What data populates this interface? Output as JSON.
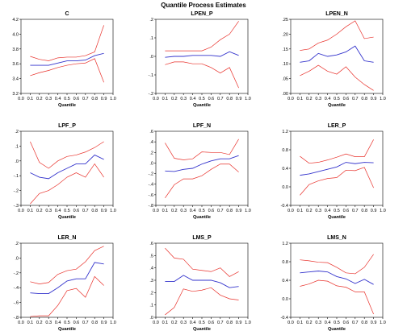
{
  "title": "Quantile Process Estimates",
  "colors": {
    "estimate": "#3333cc",
    "bounds": "#e8302a",
    "axis": "#000000"
  },
  "chart_data": [
    {
      "type": "line",
      "title": "C",
      "xlabel": "Quantile",
      "xlim": [
        0.0,
        1.0
      ],
      "xticks": [
        "0.0",
        "0.1",
        "0.2",
        "0.3",
        "0.4",
        "0.5",
        "0.6",
        "0.7",
        "0.8",
        "0.9",
        "1.0"
      ],
      "ylim": [
        3.2,
        4.2
      ],
      "yticks": [
        3.2,
        3.4,
        3.6,
        3.8,
        4.0,
        4.2
      ],
      "ytick_labels": [
        "3.2",
        "3.4",
        "3.6",
        "3.8",
        "4.0",
        "4.2"
      ],
      "x": [
        0.1,
        0.2,
        0.3,
        0.4,
        0.5,
        0.6,
        0.7,
        0.8,
        0.9
      ],
      "series": [
        {
          "role": "estimate",
          "values": [
            3.58,
            3.58,
            3.58,
            3.61,
            3.64,
            3.64,
            3.65,
            3.71,
            3.74
          ]
        },
        {
          "role": "upper",
          "values": [
            3.7,
            3.66,
            3.64,
            3.68,
            3.69,
            3.69,
            3.71,
            3.76,
            4.12
          ]
        },
        {
          "role": "lower",
          "values": [
            3.44,
            3.48,
            3.51,
            3.55,
            3.58,
            3.6,
            3.61,
            3.67,
            3.35
          ]
        }
      ]
    },
    {
      "type": "line",
      "title": "LPEN_P",
      "xlabel": "Quantile",
      "xlim": [
        0.0,
        1.0
      ],
      "xticks": [
        "0.0",
        "0.1",
        "0.2",
        "0.3",
        "0.4",
        "0.5",
        "0.6",
        "0.7",
        "0.8",
        "0.9",
        "1.0"
      ],
      "ylim": [
        -0.2,
        0.2
      ],
      "yticks": [
        -0.2,
        -0.1,
        0.0,
        0.1,
        0.2
      ],
      "ytick_labels": [
        "-.2",
        "-.1",
        ".0",
        ".1",
        ".2"
      ],
      "x": [
        0.1,
        0.2,
        0.3,
        0.4,
        0.5,
        0.6,
        0.7,
        0.8,
        0.9
      ],
      "series": [
        {
          "role": "estimate",
          "values": [
            -0.005,
            0.0,
            0.0,
            0.005,
            0.005,
            0.005,
            0.0,
            0.025,
            0.005
          ]
        },
        {
          "role": "upper",
          "values": [
            0.03,
            0.03,
            0.03,
            0.03,
            0.03,
            0.05,
            0.09,
            0.12,
            0.19
          ]
        },
        {
          "role": "lower",
          "values": [
            -0.045,
            -0.03,
            -0.03,
            -0.04,
            -0.04,
            -0.06,
            -0.09,
            -0.06,
            -0.17
          ]
        }
      ]
    },
    {
      "type": "line",
      "title": "LPEN_N",
      "xlabel": "Quantile",
      "xlim": [
        0.0,
        1.0
      ],
      "xticks": [
        "0.0",
        "0.1",
        "0.2",
        "0.3",
        "0.4",
        "0.5",
        "0.6",
        "0.7",
        "0.8",
        "0.9",
        "1.0"
      ],
      "ylim": [
        0.0,
        0.25
      ],
      "yticks": [
        0.0,
        0.05,
        0.1,
        0.15,
        0.2,
        0.25
      ],
      "ytick_labels": [
        ".00",
        ".05",
        ".10",
        ".15",
        ".20",
        ".25"
      ],
      "x": [
        0.1,
        0.2,
        0.3,
        0.4,
        0.5,
        0.6,
        0.7,
        0.8,
        0.9
      ],
      "series": [
        {
          "role": "estimate",
          "values": [
            0.105,
            0.11,
            0.135,
            0.125,
            0.13,
            0.14,
            0.16,
            0.11,
            0.105
          ]
        },
        {
          "role": "upper",
          "values": [
            0.145,
            0.15,
            0.17,
            0.18,
            0.2,
            0.225,
            0.245,
            0.185,
            0.19
          ]
        },
        {
          "role": "lower",
          "values": [
            0.06,
            0.075,
            0.095,
            0.075,
            0.065,
            0.09,
            0.055,
            0.03,
            0.01
          ]
        }
      ]
    },
    {
      "type": "line",
      "title": "LPF_P",
      "xlabel": "Quantile",
      "xlim": [
        0.0,
        1.0
      ],
      "xticks": [
        "0.0",
        "0.1",
        "0.2",
        "0.3",
        "0.4",
        "0.5",
        "0.6",
        "0.7",
        "0.8",
        "0.9",
        "1.0"
      ],
      "ylim": [
        -0.3,
        0.2
      ],
      "yticks": [
        -0.3,
        -0.2,
        -0.1,
        0.0,
        0.1,
        0.2
      ],
      "ytick_labels": [
        "-.3",
        "-.2",
        "-.1",
        ".0",
        ".1",
        ".2"
      ],
      "x": [
        0.1,
        0.2,
        0.3,
        0.4,
        0.5,
        0.6,
        0.7,
        0.8,
        0.9
      ],
      "series": [
        {
          "role": "estimate",
          "values": [
            -0.08,
            -0.11,
            -0.12,
            -0.08,
            -0.05,
            -0.02,
            -0.02,
            0.04,
            0.01
          ]
        },
        {
          "role": "upper",
          "values": [
            0.13,
            -0.01,
            -0.05,
            0.0,
            0.03,
            0.04,
            0.06,
            0.09,
            0.13
          ]
        },
        {
          "role": "lower",
          "values": [
            -0.29,
            -0.22,
            -0.2,
            -0.16,
            -0.11,
            -0.08,
            -0.11,
            -0.02,
            -0.11
          ]
        }
      ]
    },
    {
      "type": "line",
      "title": "LPF_N",
      "xlabel": "Quantile",
      "xlim": [
        0.0,
        1.0
      ],
      "xticks": [
        "0.0",
        "0.1",
        "0.2",
        "0.3",
        "0.4",
        "0.5",
        "0.6",
        "0.7",
        "0.8",
        "0.9",
        "1.0"
      ],
      "ylim": [
        -0.8,
        0.6
      ],
      "yticks": [
        -0.8,
        -0.6,
        -0.4,
        -0.2,
        0.0,
        0.2,
        0.4,
        0.6
      ],
      "ytick_labels": [
        "-.8",
        "-.6",
        "-.4",
        "-.2",
        ".0",
        ".2",
        ".4",
        ".6"
      ],
      "x": [
        0.1,
        0.2,
        0.3,
        0.4,
        0.5,
        0.6,
        0.7,
        0.8,
        0.9
      ],
      "series": [
        {
          "role": "estimate",
          "values": [
            -0.15,
            -0.16,
            -0.12,
            -0.1,
            -0.02,
            0.04,
            0.08,
            0.08,
            0.14
          ]
        },
        {
          "role": "upper",
          "values": [
            0.38,
            0.09,
            0.06,
            0.08,
            0.21,
            0.2,
            0.2,
            0.16,
            0.45
          ]
        },
        {
          "role": "lower",
          "values": [
            -0.66,
            -0.41,
            -0.3,
            -0.3,
            -0.24,
            -0.12,
            -0.02,
            -0.02,
            -0.17
          ]
        }
      ]
    },
    {
      "type": "line",
      "title": "LER_P",
      "xlabel": "Quantile",
      "xlim": [
        0.0,
        1.0
      ],
      "xticks": [
        "0.0",
        "0.1",
        "0.2",
        "0.3",
        "0.4",
        "0.5",
        "0.6",
        "0.7",
        "0.8",
        "0.9",
        "1.0"
      ],
      "ylim": [
        -0.4,
        1.2
      ],
      "yticks": [
        -0.4,
        0.0,
        0.4,
        0.8,
        1.2
      ],
      "ytick_labels": [
        "-0.4",
        "0.0",
        "0.4",
        "0.8",
        "1.2"
      ],
      "x": [
        0.1,
        0.2,
        0.3,
        0.4,
        0.5,
        0.6,
        0.7,
        0.8,
        0.9
      ],
      "series": [
        {
          "role": "estimate",
          "values": [
            0.25,
            0.28,
            0.33,
            0.38,
            0.43,
            0.53,
            0.5,
            0.53,
            0.52
          ]
        },
        {
          "role": "upper",
          "values": [
            0.66,
            0.51,
            0.53,
            0.58,
            0.64,
            0.71,
            0.65,
            0.65,
            1.02
          ]
        },
        {
          "role": "lower",
          "values": [
            -0.18,
            0.05,
            0.13,
            0.18,
            0.2,
            0.36,
            0.35,
            0.42,
            -0.02
          ]
        }
      ]
    },
    {
      "type": "line",
      "title": "LER_N",
      "xlabel": "Quantile",
      "xlim": [
        0.0,
        1.0
      ],
      "xticks": [
        "0.0",
        "0.1",
        "0.2",
        "0.3",
        "0.4",
        "0.5",
        "0.6",
        "0.7",
        "0.8",
        "0.9",
        "1.0"
      ],
      "ylim": [
        -0.8,
        0.2
      ],
      "yticks": [
        -0.8,
        -0.6,
        -0.4,
        -0.2,
        0.0,
        0.2
      ],
      "ytick_labels": [
        "-.8",
        "-.6",
        "-.4",
        "-.2",
        ".0",
        ".2"
      ],
      "x": [
        0.1,
        0.2,
        0.3,
        0.4,
        0.5,
        0.6,
        0.7,
        0.8,
        0.9
      ],
      "series": [
        {
          "role": "estimate",
          "values": [
            -0.47,
            -0.48,
            -0.48,
            -0.4,
            -0.31,
            -0.28,
            -0.28,
            -0.06,
            -0.08
          ]
        },
        {
          "role": "upper",
          "values": [
            -0.32,
            -0.35,
            -0.33,
            -0.22,
            -0.17,
            -0.15,
            -0.05,
            0.1,
            0.16
          ]
        },
        {
          "role": "lower",
          "values": [
            -0.79,
            -0.78,
            -0.78,
            -0.64,
            -0.44,
            -0.41,
            -0.53,
            -0.25,
            -0.37
          ]
        }
      ]
    },
    {
      "type": "line",
      "title": "LMS_P",
      "xlabel": "Quantile",
      "xlim": [
        0.0,
        1.0
      ],
      "xticks": [
        "0.0",
        "0.1",
        "0.2",
        "0.3",
        "0.4",
        "0.5",
        "0.6",
        "0.7",
        "0.8",
        "0.9",
        "1.0"
      ],
      "ylim": [
        0.0,
        0.6
      ],
      "yticks": [
        0.0,
        0.1,
        0.2,
        0.3,
        0.4,
        0.5,
        0.6
      ],
      "ytick_labels": [
        ".0",
        ".1",
        ".2",
        ".3",
        ".4",
        ".5",
        ".6"
      ],
      "x": [
        0.1,
        0.2,
        0.3,
        0.4,
        0.5,
        0.6,
        0.7,
        0.8,
        0.9
      ],
      "series": [
        {
          "role": "estimate",
          "values": [
            0.29,
            0.29,
            0.34,
            0.3,
            0.3,
            0.3,
            0.28,
            0.24,
            0.25
          ]
        },
        {
          "role": "upper",
          "values": [
            0.56,
            0.48,
            0.47,
            0.39,
            0.38,
            0.37,
            0.4,
            0.33,
            0.37
          ]
        },
        {
          "role": "lower",
          "values": [
            0.02,
            0.08,
            0.23,
            0.21,
            0.22,
            0.24,
            0.18,
            0.15,
            0.14
          ]
        }
      ]
    },
    {
      "type": "line",
      "title": "LMS_N",
      "xlabel": "Quantile",
      "xlim": [
        0.0,
        1.0
      ],
      "xticks": [
        "0.0",
        "0.1",
        "0.2",
        "0.3",
        "0.4",
        "0.5",
        "0.6",
        "0.7",
        "0.8",
        "0.9",
        "1.0"
      ],
      "ylim": [
        -0.4,
        1.2
      ],
      "yticks": [
        -0.4,
        0.0,
        0.4,
        0.8,
        1.2
      ],
      "ytick_labels": [
        "-0.4",
        "0.0",
        "0.4",
        "0.8",
        "1.2"
      ],
      "x": [
        0.1,
        0.2,
        0.3,
        0.4,
        0.5,
        0.6,
        0.7,
        0.8,
        0.9
      ],
      "series": [
        {
          "role": "estimate",
          "values": [
            0.56,
            0.58,
            0.6,
            0.58,
            0.48,
            0.43,
            0.33,
            0.42,
            0.31
          ]
        },
        {
          "role": "upper",
          "values": [
            0.84,
            0.82,
            0.79,
            0.78,
            0.68,
            0.56,
            0.54,
            0.68,
            0.96
          ]
        },
        {
          "role": "lower",
          "values": [
            0.27,
            0.32,
            0.4,
            0.38,
            0.28,
            0.25,
            0.15,
            0.15,
            -0.33
          ]
        }
      ]
    }
  ]
}
